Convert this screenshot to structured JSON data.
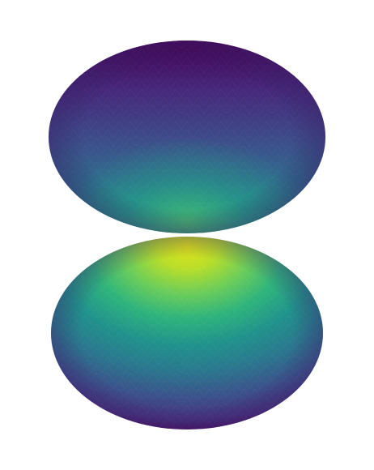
{
  "figure": {
    "description_type": "3d-surface-render",
    "colormap": "viridis",
    "background_color": "#ffffff",
    "colormap_stops": [
      "#440154",
      "#472d7b",
      "#3b528b",
      "#2c728e",
      "#21918c",
      "#28ae80",
      "#5ec962",
      "#addc30",
      "#fde725"
    ],
    "lobes": [
      {
        "name": "upper-lobe",
        "intensity_min": 0.05,
        "intensity_max": 0.55
      },
      {
        "name": "lower-lobe",
        "intensity_min": 0.05,
        "intensity_max": 0.92
      }
    ]
  }
}
